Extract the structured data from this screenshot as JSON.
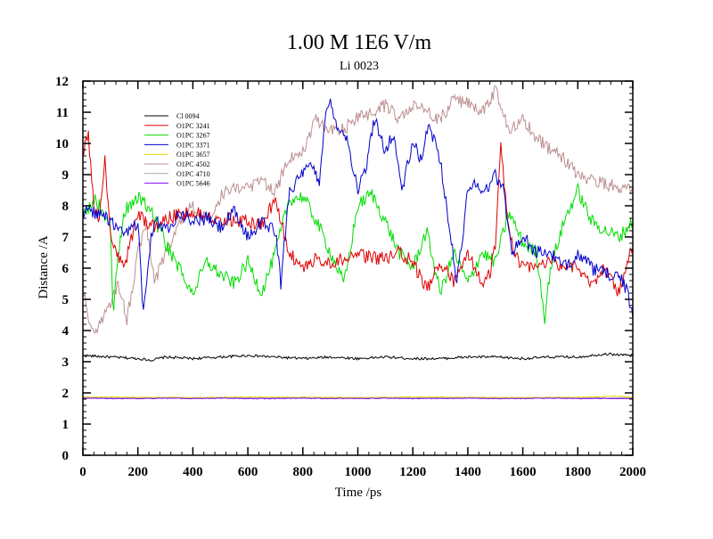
{
  "chart_data": {
    "type": "line",
    "title": "1.00 M 1E6 V/m",
    "subtitle": "Li 0023",
    "xlabel": "Time /ps",
    "ylabel": "Distance /A",
    "xlim": [
      0,
      2000
    ],
    "ylim": [
      0,
      12
    ],
    "xticks": [
      0,
      200,
      400,
      600,
      800,
      1000,
      1200,
      1400,
      1600,
      1800,
      2000
    ],
    "yticks": [
      0,
      1,
      2,
      3,
      4,
      5,
      6,
      7,
      8,
      9,
      10,
      11,
      12
    ],
    "legend_position": "top-left",
    "series": [
      {
        "name": "Cl 0094",
        "color": "#000000",
        "x": [
          0,
          100,
          200,
          250,
          300,
          400,
          500,
          600,
          700,
          800,
          900,
          1000,
          1100,
          1200,
          1300,
          1400,
          1500,
          1600,
          1700,
          1800,
          1900,
          2000
        ],
        "y": [
          3.2,
          3.15,
          3.1,
          3.05,
          3.15,
          3.1,
          3.15,
          3.2,
          3.15,
          3.1,
          3.15,
          3.1,
          3.15,
          3.1,
          3.1,
          3.15,
          3.15,
          3.1,
          3.15,
          3.15,
          3.25,
          3.2
        ]
      },
      {
        "name": "O1PC 3241",
        "color": "#dd0000",
        "x": [
          0,
          20,
          40,
          60,
          80,
          100,
          150,
          200,
          250,
          300,
          400,
          500,
          600,
          650,
          700,
          750,
          800,
          850,
          900,
          1000,
          1100,
          1150,
          1200,
          1250,
          1300,
          1350,
          1400,
          1450,
          1480,
          1500,
          1520,
          1540,
          1560,
          1600,
          1700,
          1800,
          1850,
          1900,
          1950,
          2000
        ],
        "y": [
          9.8,
          10.2,
          8.0,
          7.5,
          9.5,
          7.0,
          6.0,
          7.8,
          7.3,
          7.6,
          7.8,
          7.6,
          7.5,
          7.4,
          8.2,
          6.5,
          6.0,
          6.3,
          6.2,
          6.4,
          6.3,
          6.5,
          6.2,
          5.3,
          6.2,
          5.5,
          6.5,
          5.5,
          5.8,
          6.8,
          10.1,
          7.8,
          6.8,
          6.0,
          6.2,
          6.0,
          5.5,
          6.0,
          5.2,
          6.8
        ]
      },
      {
        "name": "O1PC 3267",
        "color": "#00dd00",
        "x": [
          0,
          50,
          100,
          110,
          130,
          150,
          200,
          250,
          300,
          350,
          400,
          450,
          500,
          550,
          600,
          650,
          700,
          750,
          800,
          850,
          900,
          950,
          1000,
          1050,
          1100,
          1150,
          1200,
          1250,
          1300,
          1350,
          1400,
          1450,
          1500,
          1550,
          1600,
          1650,
          1680,
          1700,
          1750,
          1800,
          1850,
          1900,
          1950,
          2000
        ],
        "y": [
          7.8,
          8.2,
          7.2,
          4.6,
          6.5,
          7.8,
          8.3,
          7.8,
          6.8,
          6.0,
          5.2,
          6.2,
          5.8,
          5.5,
          6.2,
          5.2,
          6.5,
          8.2,
          8.3,
          7.5,
          6.5,
          5.5,
          8.0,
          8.4,
          7.5,
          6.5,
          6.0,
          7.2,
          5.2,
          6.5,
          5.5,
          6.5,
          6.2,
          7.8,
          6.8,
          6.5,
          4.4,
          6.0,
          7.5,
          8.5,
          7.5,
          7.2,
          7.0,
          7.5
        ]
      },
      {
        "name": "O1PC 3371",
        "color": "#0000cc",
        "x": [
          0,
          50,
          100,
          150,
          200,
          220,
          240,
          260,
          300,
          350,
          400,
          450,
          500,
          550,
          600,
          650,
          700,
          720,
          750,
          800,
          830,
          860,
          880,
          900,
          930,
          960,
          1000,
          1030,
          1060,
          1100,
          1130,
          1160,
          1200,
          1230,
          1260,
          1300,
          1330,
          1360,
          1400,
          1430,
          1460,
          1500,
          1530,
          1560,
          1600,
          1650,
          1700,
          1750,
          1800,
          1850,
          1900,
          1950,
          1980,
          2000
        ],
        "y": [
          7.8,
          7.8,
          7.5,
          7.0,
          7.5,
          4.6,
          6.5,
          7.6,
          7.2,
          7.8,
          7.5,
          7.6,
          7.3,
          7.8,
          7.0,
          7.5,
          7.2,
          5.5,
          8.5,
          9.0,
          9.3,
          8.8,
          10.8,
          11.3,
          10.5,
          10.2,
          8.5,
          9.2,
          10.8,
          9.8,
          10.3,
          8.5,
          10.0,
          9.5,
          10.6,
          9.5,
          7.5,
          5.5,
          8.5,
          8.8,
          8.4,
          9.0,
          8.5,
          6.5,
          7.0,
          6.5,
          6.5,
          6.0,
          6.5,
          6.0,
          5.8,
          5.8,
          5.2,
          4.5
        ]
      },
      {
        "name": "O1PC 3657",
        "color": "#e8d800",
        "x": [
          0,
          200,
          400,
          600,
          800,
          1000,
          1200,
          1400,
          1600,
          1800,
          1950,
          2000
        ],
        "y": [
          1.87,
          1.86,
          1.85,
          1.87,
          1.86,
          1.85,
          1.87,
          1.86,
          1.85,
          1.86,
          1.9,
          1.85
        ]
      },
      {
        "name": "O1PC 4502",
        "color": "#bc8f8f",
        "x": [
          0,
          20,
          50,
          80,
          100,
          130,
          160,
          200,
          230,
          260,
          300,
          350,
          400,
          450,
          500,
          550,
          600,
          650,
          700,
          750,
          800,
          850,
          900,
          950,
          1000,
          1050,
          1100,
          1150,
          1200,
          1250,
          1300,
          1350,
          1400,
          1450,
          1500,
          1550,
          1600,
          1650,
          1700,
          1750,
          1800,
          1850,
          1900,
          1950,
          2000
        ],
        "y": [
          5.5,
          4.3,
          4.0,
          4.5,
          4.8,
          5.5,
          4.3,
          6.5,
          7.5,
          5.5,
          6.5,
          7.5,
          8.0,
          7.5,
          8.3,
          8.7,
          8.5,
          8.8,
          8.5,
          9.5,
          9.8,
          10.8,
          10.4,
          10.5,
          10.8,
          11.0,
          11.2,
          10.8,
          11.3,
          11.0,
          10.8,
          11.4,
          11.3,
          11.0,
          11.7,
          10.5,
          10.8,
          10.2,
          9.8,
          9.5,
          9.0,
          8.8,
          8.7,
          8.6,
          8.5
        ]
      },
      {
        "name": "O1PC 4710",
        "color": "#a9a9a9",
        "x": [
          0,
          500,
          1000,
          1500,
          2000
        ],
        "y": [
          1.84,
          1.84,
          1.84,
          1.84,
          1.84
        ]
      },
      {
        "name": "O1PC 5646",
        "color": "#7f00ff",
        "x": [
          0,
          100,
          200,
          300,
          400,
          500,
          600,
          700,
          800,
          900,
          1000,
          1100,
          1200,
          1300,
          1400,
          1500,
          1600,
          1700,
          1800,
          1900,
          2000
        ],
        "y": [
          1.83,
          1.82,
          1.82,
          1.83,
          1.82,
          1.83,
          1.82,
          1.82,
          1.83,
          1.82,
          1.82,
          1.83,
          1.82,
          1.82,
          1.83,
          1.82,
          1.82,
          1.83,
          1.82,
          1.82,
          1.82
        ]
      }
    ]
  }
}
